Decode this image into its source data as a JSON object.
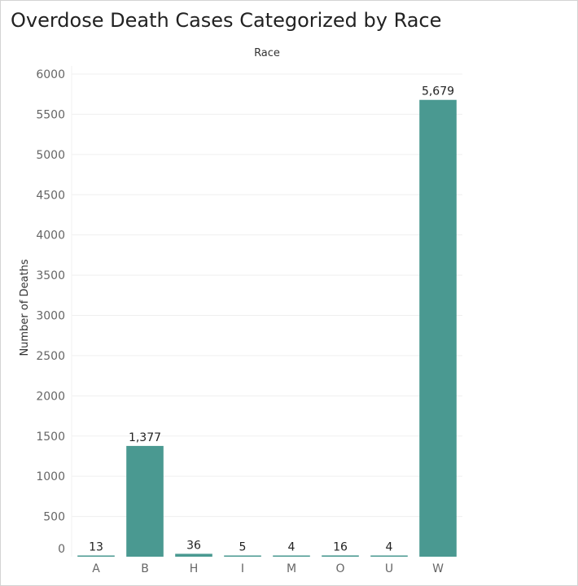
{
  "chart_data": {
    "type": "bar",
    "title": "Overdose Death Cases Categorized by Race",
    "xlabel": "Race",
    "ylabel": "Number of Deaths",
    "categories": [
      "A",
      "B",
      "H",
      "I",
      "M",
      "O",
      "U",
      "W"
    ],
    "values": [
      13,
      1377,
      36,
      5,
      4,
      16,
      4,
      5679
    ],
    "data_labels": [
      "13",
      "1,377",
      "36",
      "5",
      "4",
      "16",
      "4",
      "5,679"
    ],
    "ylim": [
      0,
      6000
    ],
    "yticks": [
      0,
      500,
      1000,
      1500,
      2000,
      2500,
      3000,
      3500,
      4000,
      4500,
      5000,
      5500,
      6000
    ],
    "grid": true,
    "bar_color": "#4a9991"
  }
}
